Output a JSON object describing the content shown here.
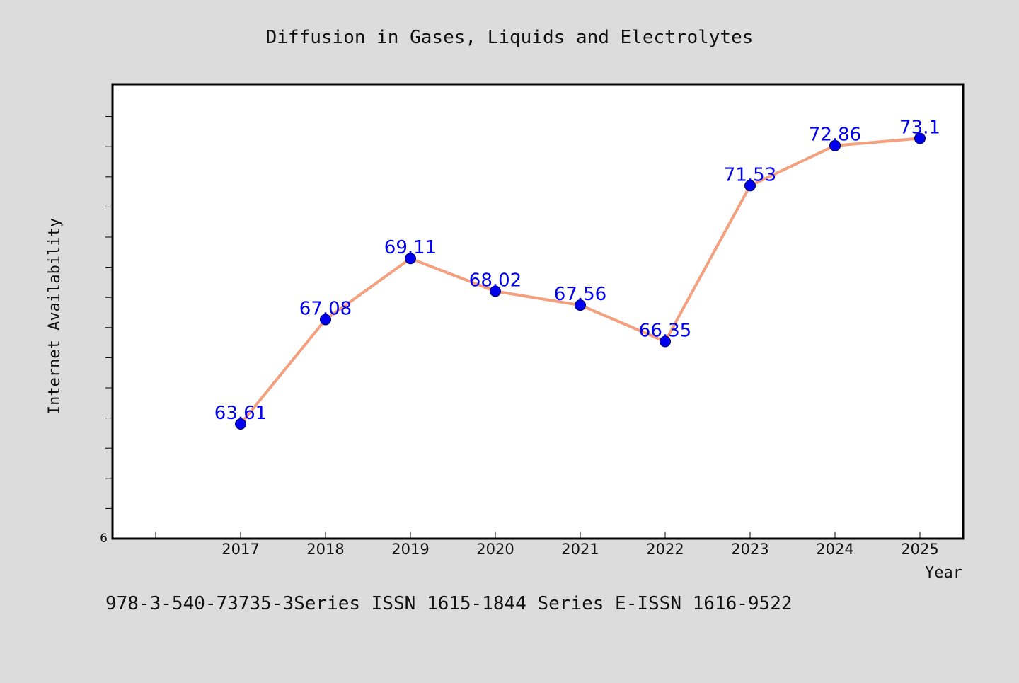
{
  "chart_data": {
    "type": "line",
    "title": "Diffusion in Gases, Liquids and Electrolytes",
    "xlabel": "Year",
    "ylabel": "Internet Availability",
    "x": [
      "2017",
      "2018",
      "2019",
      "2020",
      "2021",
      "2022",
      "2023",
      "2024",
      "2025"
    ],
    "series": [
      {
        "values": [
          63.61,
          67.08,
          69.11,
          68.02,
          67.56,
          66.35,
          71.53,
          72.86,
          73.1
        ],
        "labels": [
          "63.61",
          "67.08",
          "69.11",
          "68.02",
          "67.56",
          "66.35",
          "71.53",
          "72.86",
          "73.1"
        ]
      }
    ],
    "y_min_label": "6",
    "ylim": [
      59.8,
      74.9
    ],
    "grid": false,
    "legend": "none",
    "colors": {
      "background": "#dcdcdc",
      "plot_background": "#ffffff",
      "line": "#f4a07e",
      "marker": "#0000ee",
      "data_label": "#0000ee",
      "axis": "#000000"
    }
  },
  "footer": {
    "text": "978-3-540-73735-3Series ISSN 1615-1844 Series E-ISSN 1616-9522"
  }
}
